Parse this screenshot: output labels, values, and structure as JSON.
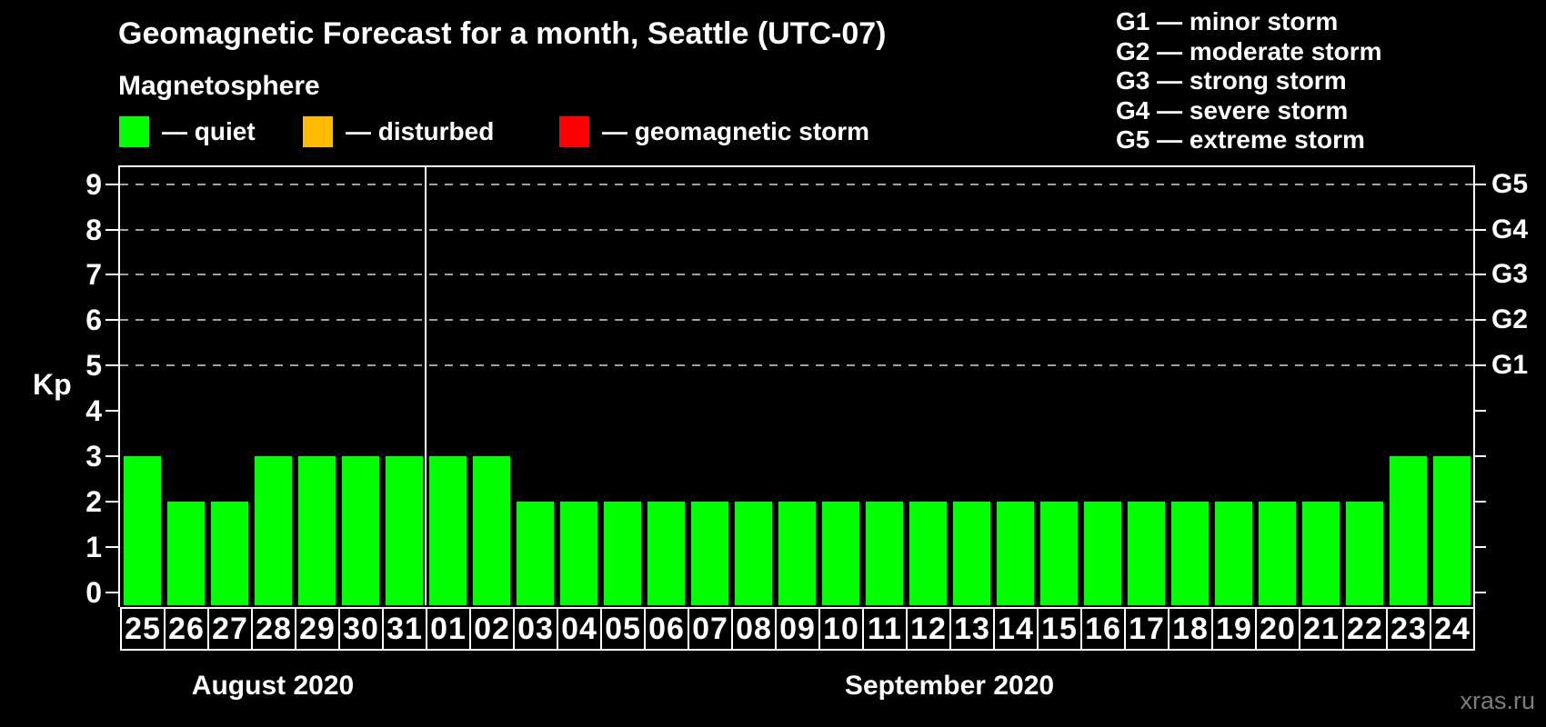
{
  "title": "Geomagnetic Forecast for a month, Seattle (UTC-07)",
  "subtitle": "Magnetosphere",
  "legend": {
    "quiet": {
      "label": "— quiet",
      "color": "#00ff00"
    },
    "disturbed": {
      "label": "— disturbed",
      "color": "#ffbb00"
    },
    "storm": {
      "label": "— geomagnetic storm",
      "color": "#ff0000"
    }
  },
  "g_legend": {
    "g1": "G1 — minor storm",
    "g2": "G2 — moderate storm",
    "g3": "G3 — strong storm",
    "g4": "G4 — severe storm",
    "g5": "G5 — extreme storm"
  },
  "watermark": "xras.ru",
  "chart_data": {
    "type": "bar",
    "title": "Geomagnetic Forecast for a month, Seattle (UTC-07)",
    "ylabel": "Kp",
    "ylim": [
      -0.3,
      9.4
    ],
    "y_ticks": [
      0,
      1,
      2,
      3,
      4,
      5,
      6,
      7,
      8,
      9
    ],
    "grid_levels": [
      5,
      6,
      7,
      8,
      9
    ],
    "grid_color": "#a0a0a0",
    "bar_color": "#00ff00",
    "right_axis": [
      {
        "label": "G1",
        "kp": 5
      },
      {
        "label": "G2",
        "kp": 6
      },
      {
        "label": "G3",
        "kp": 7
      },
      {
        "label": "G4",
        "kp": 8
      },
      {
        "label": "G5",
        "kp": 9
      }
    ],
    "months": [
      {
        "label": "August 2020",
        "start_index": 0,
        "days": 7
      },
      {
        "label": "September 2020",
        "start_index": 7,
        "days": 24
      }
    ],
    "categories": [
      "25",
      "26",
      "27",
      "28",
      "29",
      "30",
      "31",
      "01",
      "02",
      "03",
      "04",
      "05",
      "06",
      "07",
      "08",
      "09",
      "10",
      "11",
      "12",
      "13",
      "14",
      "15",
      "16",
      "17",
      "18",
      "19",
      "20",
      "21",
      "22",
      "23",
      "24"
    ],
    "values": [
      3,
      2,
      2,
      3,
      3,
      3,
      3,
      3,
      3,
      2,
      2,
      2,
      2,
      2,
      2,
      2,
      2,
      2,
      2,
      2,
      2,
      2,
      2,
      2,
      2,
      2,
      2,
      2,
      2,
      3,
      3
    ]
  }
}
